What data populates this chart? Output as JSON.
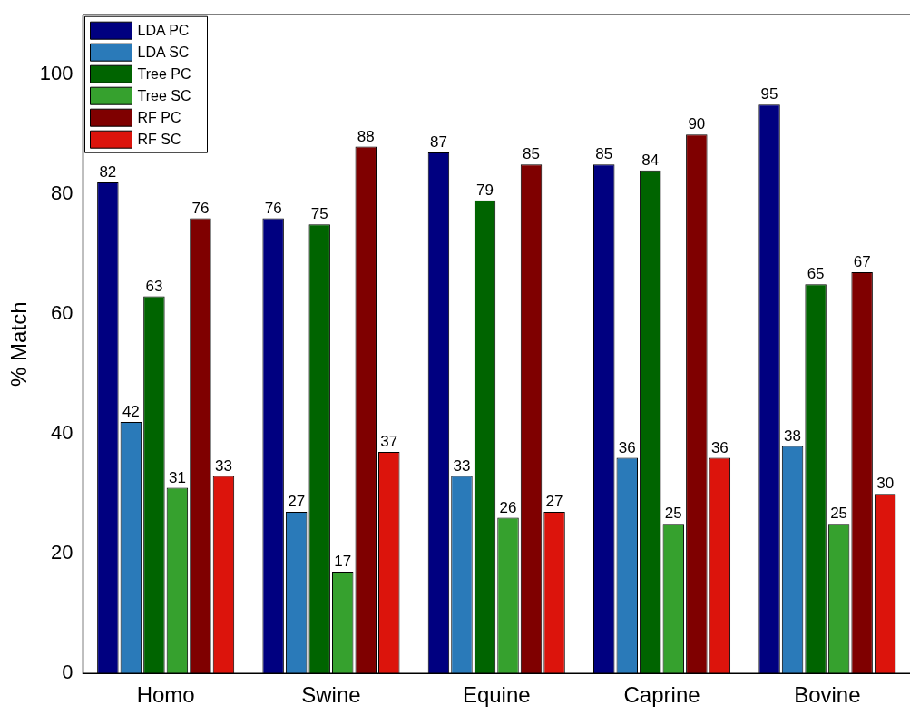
{
  "chart_data": {
    "type": "bar",
    "ylabel": "% Match",
    "categories": [
      "Homo",
      "Swine",
      "Equine",
      "Caprine",
      "Bovine"
    ],
    "series": [
      {
        "name": "LDA PC",
        "color": "#000080",
        "values": [
          82,
          76,
          87,
          85,
          95
        ]
      },
      {
        "name": "LDA SC",
        "color": "#2a7ab9",
        "values": [
          42,
          27,
          33,
          36,
          38
        ]
      },
      {
        "name": "Tree PC",
        "color": "#006400",
        "values": [
          63,
          75,
          79,
          84,
          65
        ]
      },
      {
        "name": "Tree SC",
        "color": "#36a12e",
        "values": [
          31,
          17,
          26,
          25,
          25
        ]
      },
      {
        "name": "RF PC",
        "color": "#7f0000",
        "values": [
          76,
          88,
          85,
          90,
          67
        ]
      },
      {
        "name": "RF SC",
        "color": "#dc140c",
        "values": [
          33,
          37,
          27,
          36,
          30
        ]
      }
    ],
    "ylim": [
      0,
      110
    ],
    "yticks": [
      0,
      20,
      40,
      60,
      80,
      100
    ],
    "grid": false,
    "legend": "top left",
    "data_labels": true
  }
}
